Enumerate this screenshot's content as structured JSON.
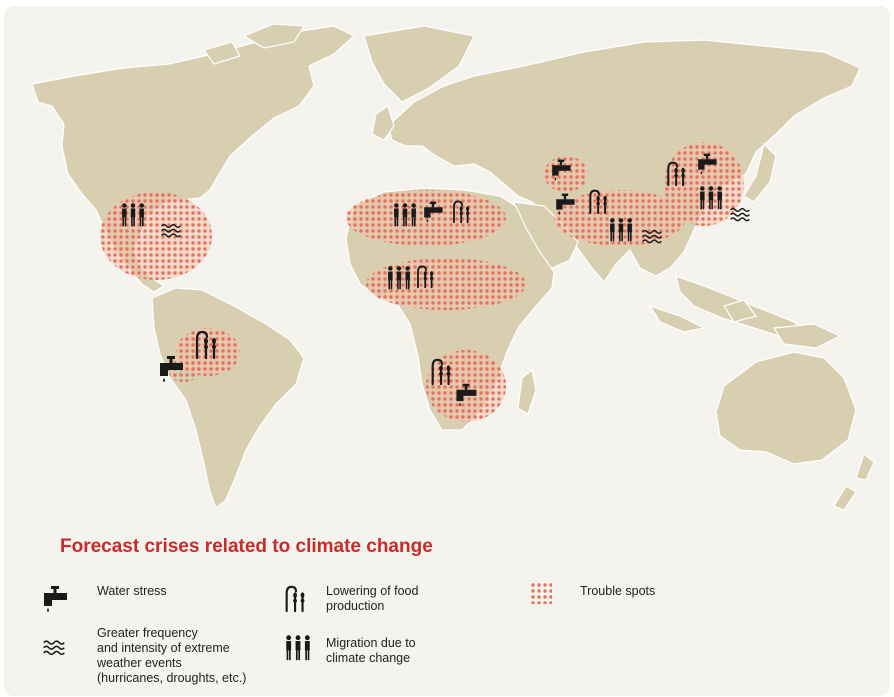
{
  "legend": {
    "title": "Forecast crises related to climate change",
    "items": [
      {
        "icon": "water-tap-icon",
        "label": "Water stress"
      },
      {
        "icon": "wheat-stalk-icon",
        "label_lines": [
          "Lowering of food",
          "production"
        ]
      },
      {
        "icon": "dotted-area-icon",
        "label": "Trouble spots"
      },
      {
        "icon": "wave-lines-icon",
        "label_lines": [
          "Greater frequency",
          "and intensity of extreme",
          "weather events",
          "(hurricanes, droughts, etc.)"
        ]
      },
      {
        "icon": "people-group-icon",
        "label_lines": [
          "Migration due to",
          "climate change"
        ]
      }
    ]
  },
  "colors": {
    "land": "#d7cfb0",
    "background": "#f4f3ee",
    "trouble_spot_dot": "#e2735a",
    "trouble_spot_fill": "#f2c2b0",
    "title": "#cc2a2a",
    "icon": "#1a1a1a"
  },
  "regions": [
    {
      "name": "central-america-caribbean",
      "icons": [
        "people-group-icon",
        "wave-lines-icon"
      ]
    },
    {
      "name": "north-africa",
      "icons": [
        "people-group-icon",
        "water-tap-icon",
        "wheat-stalk-icon"
      ]
    },
    {
      "name": "sahel",
      "icons": [
        "people-group-icon",
        "wheat-stalk-icon"
      ]
    },
    {
      "name": "andes-amazon",
      "icons": [
        "wheat-stalk-icon",
        "water-tap-icon"
      ]
    },
    {
      "name": "southern-africa",
      "icons": [
        "wheat-stalk-icon",
        "water-tap-icon"
      ]
    },
    {
      "name": "central-asia",
      "icons": [
        "water-tap-icon"
      ]
    },
    {
      "name": "middle-east-south-asia",
      "icons": [
        "water-tap-icon",
        "wheat-stalk-icon",
        "people-group-icon",
        "wave-lines-icon"
      ]
    },
    {
      "name": "china",
      "icons": [
        "wheat-stalk-icon",
        "water-tap-icon",
        "people-group-icon",
        "wave-lines-icon"
      ]
    }
  ]
}
